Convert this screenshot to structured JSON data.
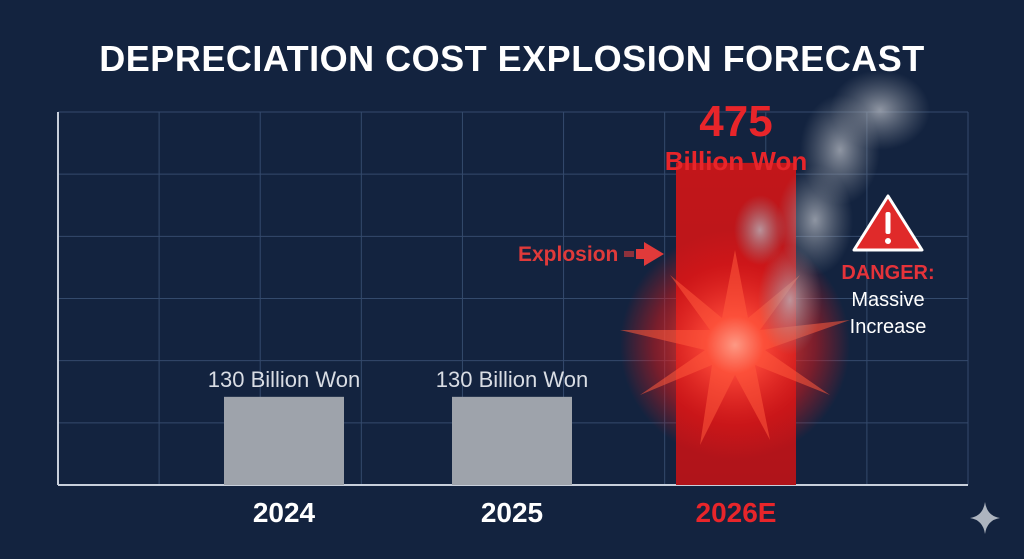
{
  "title": "DEPRECIATION COST EXPLOSION FORECAST",
  "chart_data": {
    "type": "bar",
    "title": "DEPRECIATION COST EXPLOSION FORECAST",
    "categories": [
      "2024",
      "2025",
      "2026E"
    ],
    "values": [
      130,
      130,
      475
    ],
    "value_labels": [
      "130 Billion Won",
      "130 Billion Won",
      "Billion Won"
    ],
    "highlight_value_text": "475",
    "ylim": [
      0,
      550
    ],
    "grid": true,
    "colors": {
      "background": "#13233f",
      "normal_bar": "#9ea3ab",
      "highlight_bar": "#d11a1a",
      "highlight_text": "#e8252a"
    },
    "annotations": {
      "arrow_label": "Explosion",
      "warning_icon": "warning-triangle-icon",
      "warning_title": "DANGER:",
      "warning_line1": "Massive",
      "warning_line2": "Increase"
    }
  },
  "icons": {
    "sparkle": "sparkle-icon"
  }
}
